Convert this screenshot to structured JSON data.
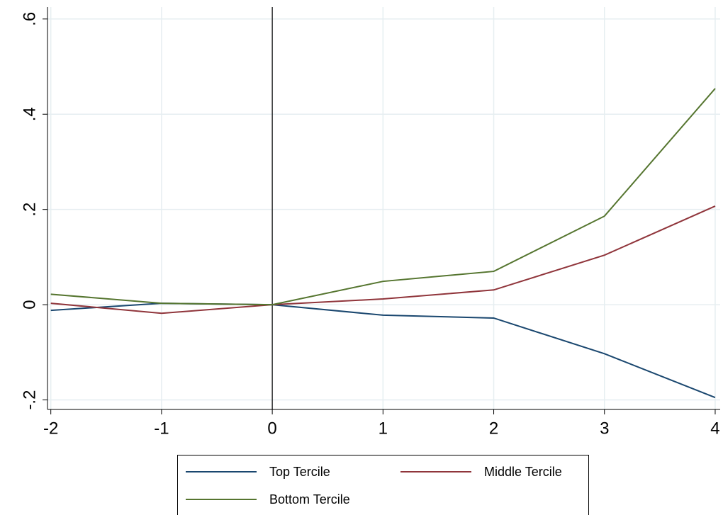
{
  "chart_data": {
    "type": "line",
    "x": [
      -2,
      -1,
      0,
      1,
      2,
      3,
      4
    ],
    "series": [
      {
        "name": "Top Tercile",
        "color": "#1a476f",
        "values": [
          -0.012,
          0.003,
          0,
          -0.022,
          -0.028,
          -0.103,
          -0.195
        ]
      },
      {
        "name": "Middle Tercile",
        "color": "#90353b",
        "values": [
          0.003,
          -0.018,
          0,
          0.012,
          0.031,
          0.104,
          0.207
        ]
      },
      {
        "name": "Bottom Tercile",
        "color": "#55752f",
        "values": [
          0.022,
          0.003,
          0,
          0.049,
          0.07,
          0.186,
          0.454
        ]
      }
    ],
    "xlim": [
      -2.03,
      4.045
    ],
    "ylim": [
      -0.22,
      0.625
    ],
    "xticks": [
      -2,
      -1,
      0,
      1,
      2,
      3,
      4
    ],
    "yticks": [
      {
        "value": -0.2,
        "label": "-.2"
      },
      0,
      {
        "value": 0.2,
        "label": ".2"
      },
      {
        "value": 0.4,
        "label": ".4"
      },
      {
        "value": 0.6,
        "label": ".6"
      }
    ],
    "xline": 0,
    "grid": true
  }
}
